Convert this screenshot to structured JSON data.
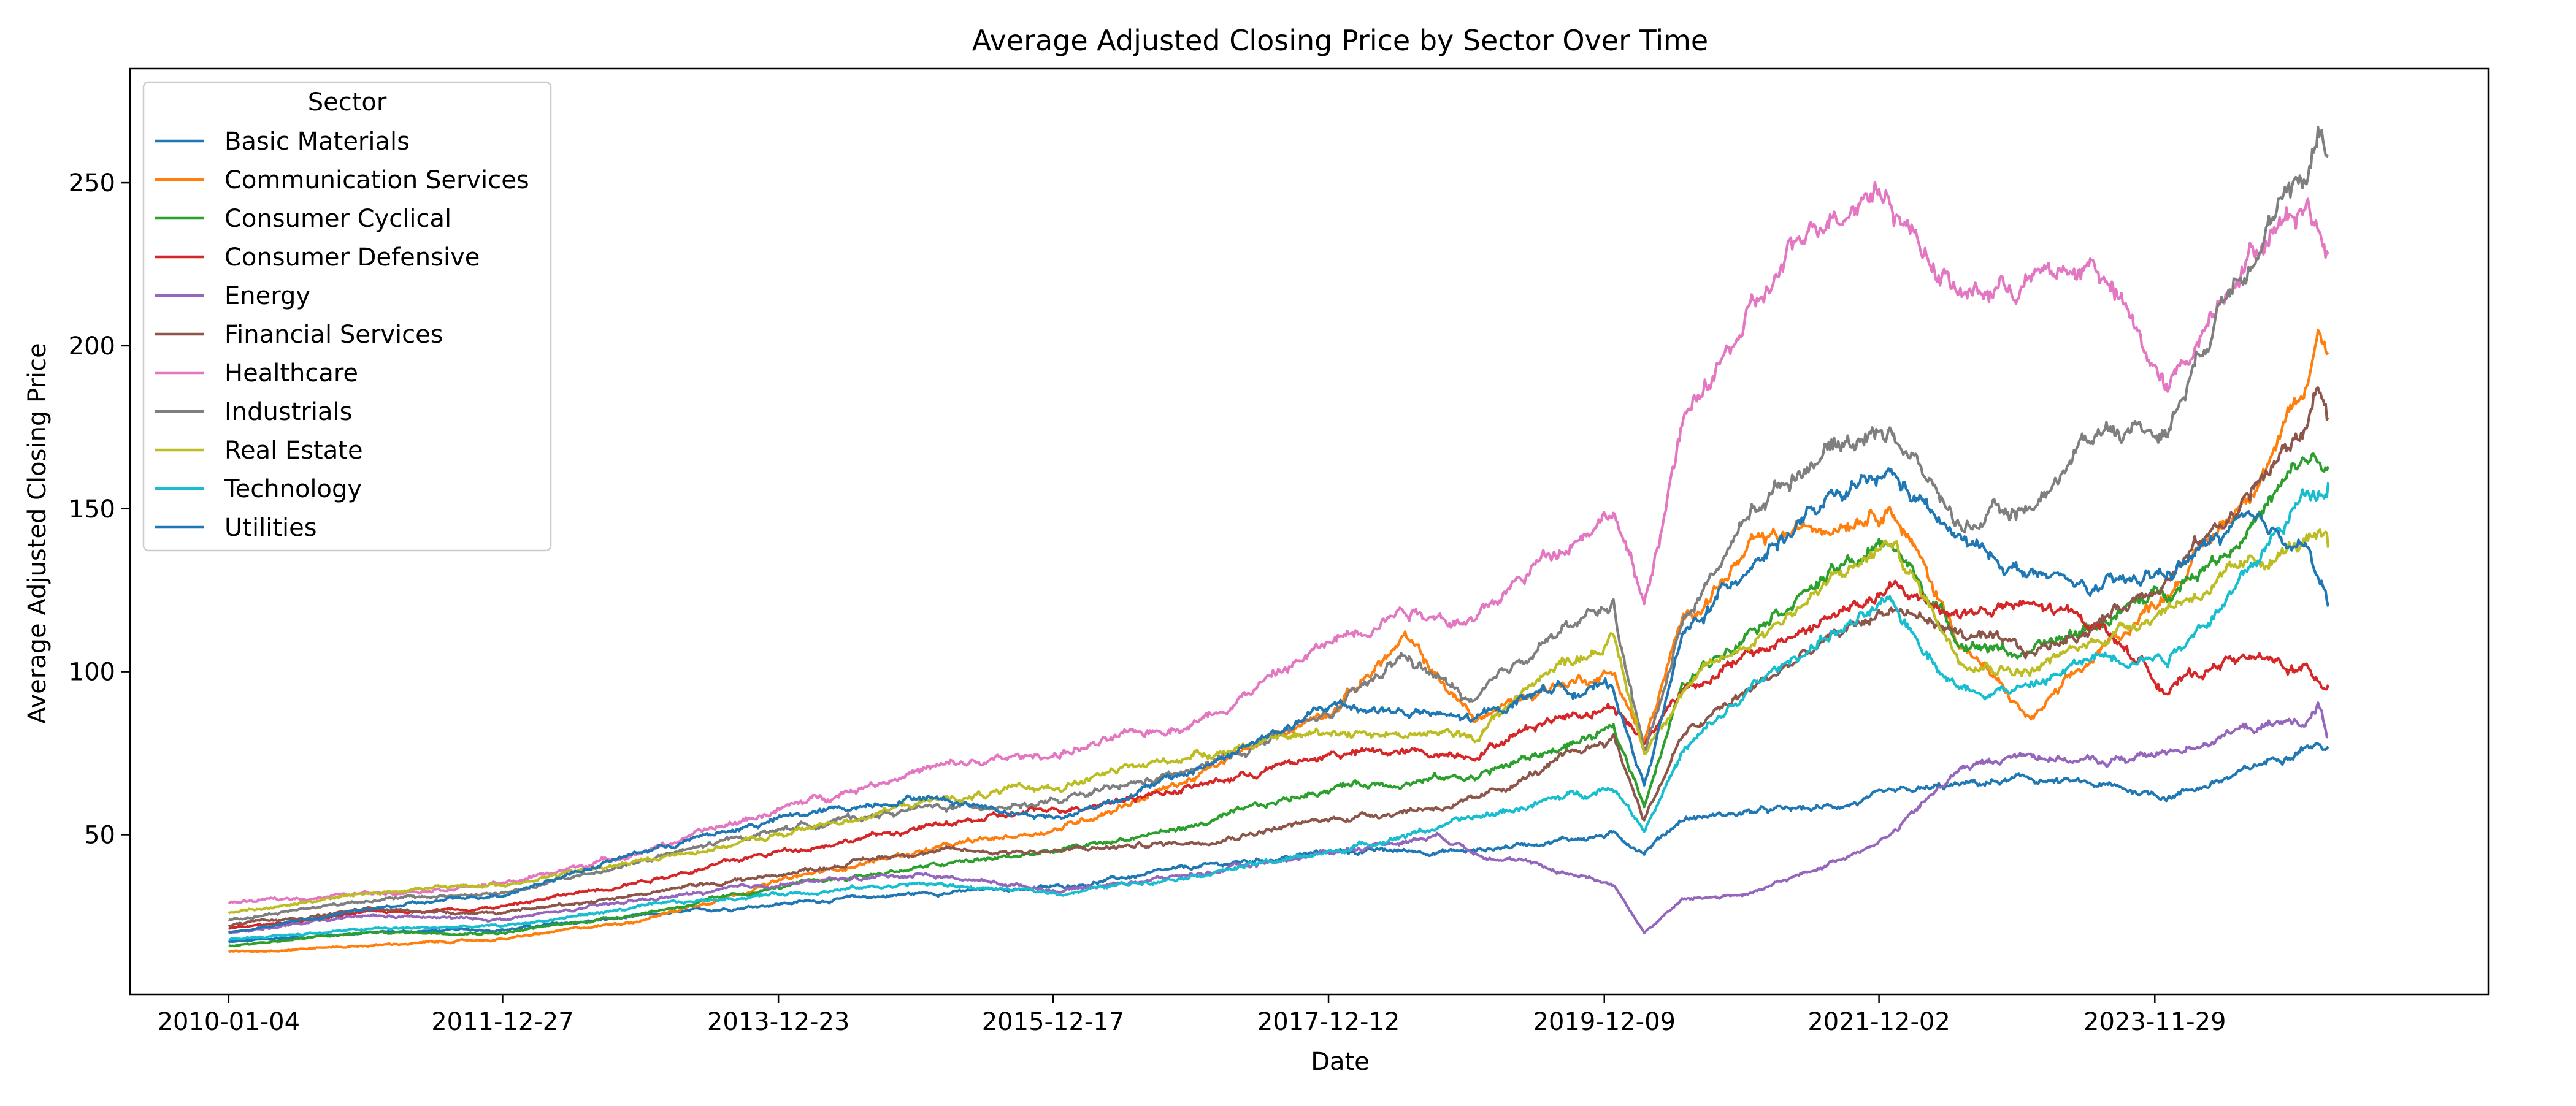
{
  "chart_data": {
    "type": "line",
    "title": "Average Adjusted Closing Price by Sector Over Time",
    "xlabel": "Date",
    "ylabel": "Average Adjusted Closing Price",
    "x_tick_labels": [
      "2010-01-04",
      "2011-12-27",
      "2013-12-23",
      "2015-12-17",
      "2017-12-12",
      "2019-12-09",
      "2021-12-02",
      "2023-11-29"
    ],
    "y_ticks": [
      50,
      100,
      150,
      200,
      250
    ],
    "xlim": [
      "2009-04-19",
      "2026-04-26"
    ],
    "ylim": [
      1,
      285
    ],
    "grid": false,
    "legend": {
      "title": "Sector",
      "placement": "top-left"
    },
    "series": [
      {
        "name": "Basic Materials",
        "color": "#1f77b4",
        "points": [
          [
            "2010-01-04",
            17
          ],
          [
            "2011-01-03",
            20
          ],
          [
            "2012-01-03",
            21
          ],
          [
            "2013-01-02",
            25
          ],
          [
            "2014-01-02",
            29
          ],
          [
            "2015-01-02",
            32
          ],
          [
            "2016-01-04",
            34
          ],
          [
            "2017-01-03",
            40
          ],
          [
            "2018-01-02",
            45
          ],
          [
            "2019-01-02",
            45
          ],
          [
            "2019-07-01",
            48
          ],
          [
            "2020-01-02",
            50
          ],
          [
            "2020-03-23",
            45
          ],
          [
            "2020-07-01",
            55
          ],
          [
            "2021-01-04",
            57
          ],
          [
            "2021-07-01",
            58
          ],
          [
            "2022-01-03",
            62
          ],
          [
            "2022-07-01",
            65
          ],
          [
            "2023-01-03",
            67
          ],
          [
            "2023-07-03",
            65
          ],
          [
            "2024-01-02",
            62
          ],
          [
            "2024-07-01",
            68
          ],
          [
            "2025-01-02",
            78
          ],
          [
            "2025-02-28",
            77
          ]
        ]
      },
      {
        "name": "Communication Services",
        "color": "#ff7f0e",
        "points": [
          [
            "2010-01-04",
            14
          ],
          [
            "2011-01-03",
            16
          ],
          [
            "2012-01-03",
            18
          ],
          [
            "2013-01-02",
            24
          ],
          [
            "2014-01-02",
            36
          ],
          [
            "2015-01-02",
            45
          ],
          [
            "2016-01-04",
            52
          ],
          [
            "2017-01-03",
            68
          ],
          [
            "2018-01-02",
            90
          ],
          [
            "2018-07-02",
            110
          ],
          [
            "2019-01-02",
            85
          ],
          [
            "2019-07-01",
            95
          ],
          [
            "2020-01-02",
            100
          ],
          [
            "2020-03-23",
            78
          ],
          [
            "2020-07-01",
            115
          ],
          [
            "2021-01-04",
            138
          ],
          [
            "2021-07-01",
            145
          ],
          [
            "2022-01-03",
            152
          ],
          [
            "2022-07-01",
            110
          ],
          [
            "2023-01-03",
            85
          ],
          [
            "2023-07-03",
            105
          ],
          [
            "2024-01-02",
            125
          ],
          [
            "2024-07-01",
            150
          ],
          [
            "2025-01-02",
            185
          ],
          [
            "2025-02-01",
            205
          ],
          [
            "2025-02-28",
            198
          ]
        ]
      },
      {
        "name": "Consumer Cyclical",
        "color": "#2ca02c",
        "points": [
          [
            "2010-01-04",
            16
          ],
          [
            "2011-01-03",
            20
          ],
          [
            "2012-01-03",
            20
          ],
          [
            "2013-01-02",
            26
          ],
          [
            "2014-01-02",
            34
          ],
          [
            "2015-01-02",
            40
          ],
          [
            "2016-01-04",
            45
          ],
          [
            "2017-01-03",
            53
          ],
          [
            "2018-01-02",
            65
          ],
          [
            "2019-01-02",
            68
          ],
          [
            "2019-07-01",
            75
          ],
          [
            "2020-01-02",
            82
          ],
          [
            "2020-03-23",
            60
          ],
          [
            "2020-07-01",
            95
          ],
          [
            "2021-01-04",
            115
          ],
          [
            "2021-07-01",
            128
          ],
          [
            "2022-01-03",
            140
          ],
          [
            "2022-07-01",
            110
          ],
          [
            "2023-01-03",
            105
          ],
          [
            "2023-07-03",
            115
          ],
          [
            "2024-01-02",
            125
          ],
          [
            "2024-07-01",
            140
          ],
          [
            "2025-01-02",
            165
          ],
          [
            "2025-02-28",
            163
          ]
        ]
      },
      {
        "name": "Consumer Defensive",
        "color": "#d62728",
        "points": [
          [
            "2010-01-04",
            21
          ],
          [
            "2011-01-03",
            26
          ],
          [
            "2012-01-03",
            28
          ],
          [
            "2013-01-02",
            36
          ],
          [
            "2014-01-02",
            45
          ],
          [
            "2015-01-02",
            52
          ],
          [
            "2016-01-04",
            58
          ],
          [
            "2017-01-03",
            65
          ],
          [
            "2018-01-02",
            75
          ],
          [
            "2019-01-02",
            75
          ],
          [
            "2019-07-01",
            85
          ],
          [
            "2020-01-02",
            90
          ],
          [
            "2020-03-23",
            78
          ],
          [
            "2020-07-01",
            95
          ],
          [
            "2021-01-04",
            105
          ],
          [
            "2021-07-01",
            115
          ],
          [
            "2022-01-03",
            125
          ],
          [
            "2022-07-01",
            118
          ],
          [
            "2023-01-03",
            120
          ],
          [
            "2023-07-03",
            115
          ],
          [
            "2024-01-02",
            95
          ],
          [
            "2024-07-01",
            105
          ],
          [
            "2025-01-02",
            100
          ],
          [
            "2025-02-28",
            96
          ]
        ]
      },
      {
        "name": "Energy",
        "color": "#9467bd",
        "points": [
          [
            "2010-01-04",
            20
          ],
          [
            "2011-01-03",
            25
          ],
          [
            "2012-01-03",
            24
          ],
          [
            "2013-01-02",
            30
          ],
          [
            "2014-01-02",
            35
          ],
          [
            "2015-01-02",
            38
          ],
          [
            "2016-01-04",
            33
          ],
          [
            "2017-01-03",
            38
          ],
          [
            "2018-01-02",
            45
          ],
          [
            "2018-10-01",
            50
          ],
          [
            "2019-01-02",
            45
          ],
          [
            "2019-07-01",
            40
          ],
          [
            "2020-01-02",
            35
          ],
          [
            "2020-03-23",
            20
          ],
          [
            "2020-07-01",
            30
          ],
          [
            "2021-01-04",
            32
          ],
          [
            "2021-07-01",
            40
          ],
          [
            "2022-01-03",
            50
          ],
          [
            "2022-07-01",
            70
          ],
          [
            "2023-01-03",
            75
          ],
          [
            "2023-07-03",
            72
          ],
          [
            "2024-01-02",
            75
          ],
          [
            "2024-07-01",
            82
          ],
          [
            "2025-01-02",
            85
          ],
          [
            "2025-02-01",
            90
          ],
          [
            "2025-02-28",
            80
          ]
        ]
      },
      {
        "name": "Financial Services",
        "color": "#8c564b",
        "points": [
          [
            "2010-01-04",
            22
          ],
          [
            "2011-01-03",
            27
          ],
          [
            "2012-01-03",
            26
          ],
          [
            "2013-01-02",
            32
          ],
          [
            "2014-01-02",
            38
          ],
          [
            "2015-01-02",
            45
          ],
          [
            "2016-01-04",
            45
          ],
          [
            "2017-01-03",
            48
          ],
          [
            "2018-01-02",
            55
          ],
          [
            "2019-01-02",
            60
          ],
          [
            "2019-07-01",
            70
          ],
          [
            "2020-01-02",
            80
          ],
          [
            "2020-03-23",
            55
          ],
          [
            "2020-07-01",
            80
          ],
          [
            "2021-01-04",
            95
          ],
          [
            "2021-07-01",
            108
          ],
          [
            "2022-01-03",
            120
          ],
          [
            "2022-07-01",
            112
          ],
          [
            "2023-01-03",
            105
          ],
          [
            "2023-07-03",
            115
          ],
          [
            "2024-01-02",
            130
          ],
          [
            "2024-07-01",
            150
          ],
          [
            "2025-01-02",
            175
          ],
          [
            "2025-02-01",
            190
          ],
          [
            "2025-02-28",
            178
          ]
        ]
      },
      {
        "name": "Healthcare",
        "color": "#e377c2",
        "points": [
          [
            "2010-01-04",
            29
          ],
          [
            "2011-01-03",
            32
          ],
          [
            "2012-01-03",
            35
          ],
          [
            "2013-01-02",
            45
          ],
          [
            "2014-01-02",
            58
          ],
          [
            "2015-01-02",
            70
          ],
          [
            "2016-01-04",
            75
          ],
          [
            "2017-01-03",
            85
          ],
          [
            "2018-01-02",
            110
          ],
          [
            "2018-07-02",
            120
          ],
          [
            "2019-01-02",
            115
          ],
          [
            "2019-07-01",
            135
          ],
          [
            "2020-01-02",
            150
          ],
          [
            "2020-03-23",
            120
          ],
          [
            "2020-07-01",
            175
          ],
          [
            "2021-01-04",
            210
          ],
          [
            "2021-07-01",
            240
          ],
          [
            "2021-12-02",
            250
          ],
          [
            "2022-07-01",
            215
          ],
          [
            "2023-01-03",
            220
          ],
          [
            "2023-07-03",
            225
          ],
          [
            "2024-01-02",
            185
          ],
          [
            "2024-07-01",
            225
          ],
          [
            "2025-01-02",
            245
          ],
          [
            "2025-02-28",
            228
          ]
        ]
      },
      {
        "name": "Industrials",
        "color": "#7f7f7f",
        "points": [
          [
            "2010-01-04",
            24
          ],
          [
            "2011-01-03",
            30
          ],
          [
            "2012-01-03",
            32
          ],
          [
            "2013-01-02",
            42
          ],
          [
            "2014-01-02",
            52
          ],
          [
            "2015-01-02",
            58
          ],
          [
            "2016-01-04",
            60
          ],
          [
            "2017-01-03",
            70
          ],
          [
            "2018-01-02",
            88
          ],
          [
            "2018-07-02",
            105
          ],
          [
            "2019-01-02",
            90
          ],
          [
            "2019-07-01",
            110
          ],
          [
            "2020-01-02",
            120
          ],
          [
            "2020-03-23",
            75
          ],
          [
            "2020-07-01",
            115
          ],
          [
            "2021-01-04",
            150
          ],
          [
            "2021-07-01",
            168
          ],
          [
            "2022-01-03",
            175
          ],
          [
            "2022-07-01",
            145
          ],
          [
            "2023-01-03",
            150
          ],
          [
            "2023-07-03",
            175
          ],
          [
            "2024-01-02",
            175
          ],
          [
            "2024-07-01",
            225
          ],
          [
            "2025-01-02",
            250
          ],
          [
            "2025-02-01",
            270
          ],
          [
            "2025-02-28",
            258
          ]
        ]
      },
      {
        "name": "Real Estate",
        "color": "#bcbd22",
        "points": [
          [
            "2010-01-04",
            26
          ],
          [
            "2011-01-03",
            32
          ],
          [
            "2012-01-03",
            35
          ],
          [
            "2013-01-02",
            42
          ],
          [
            "2014-01-02",
            50
          ],
          [
            "2015-01-02",
            60
          ],
          [
            "2016-01-04",
            65
          ],
          [
            "2017-01-03",
            75
          ],
          [
            "2018-01-02",
            82
          ],
          [
            "2019-01-02",
            80
          ],
          [
            "2019-07-01",
            100
          ],
          [
            "2020-01-02",
            110
          ],
          [
            "2020-03-23",
            75
          ],
          [
            "2020-07-01",
            95
          ],
          [
            "2021-01-04",
            110
          ],
          [
            "2021-07-01",
            125
          ],
          [
            "2022-01-03",
            140
          ],
          [
            "2022-07-01",
            105
          ],
          [
            "2023-01-03",
            100
          ],
          [
            "2023-07-03",
            110
          ],
          [
            "2024-01-02",
            120
          ],
          [
            "2024-07-01",
            130
          ],
          [
            "2025-01-02",
            140
          ],
          [
            "2025-02-28",
            138
          ]
        ]
      },
      {
        "name": "Technology",
        "color": "#17becf",
        "points": [
          [
            "2010-01-04",
            18
          ],
          [
            "2011-01-03",
            21
          ],
          [
            "2012-01-03",
            22
          ],
          [
            "2013-01-02",
            28
          ],
          [
            "2014-01-02",
            32
          ],
          [
            "2015-01-02",
            35
          ],
          [
            "2016-01-04",
            32
          ],
          [
            "2017-01-03",
            38
          ],
          [
            "2018-01-02",
            45
          ],
          [
            "2019-01-02",
            55
          ],
          [
            "2019-07-01",
            60
          ],
          [
            "2020-01-02",
            65
          ],
          [
            "2020-03-23",
            52
          ],
          [
            "2020-07-01",
            75
          ],
          [
            "2021-01-04",
            95
          ],
          [
            "2021-07-01",
            110
          ],
          [
            "2022-01-03",
            120
          ],
          [
            "2022-07-01",
            95
          ],
          [
            "2023-01-03",
            95
          ],
          [
            "2023-07-03",
            105
          ],
          [
            "2024-01-02",
            105
          ],
          [
            "2024-07-01",
            125
          ],
          [
            "2025-01-02",
            155
          ],
          [
            "2025-02-28",
            158
          ]
        ]
      },
      {
        "name": "Utilities",
        "color": "#1f77b4",
        "points": [
          [
            "2010-01-04",
            20
          ],
          [
            "2011-01-03",
            27
          ],
          [
            "2012-01-03",
            32
          ],
          [
            "2013-01-02",
            45
          ],
          [
            "2014-01-02",
            55
          ],
          [
            "2015-01-02",
            62
          ],
          [
            "2016-01-04",
            55
          ],
          [
            "2017-01-03",
            70
          ],
          [
            "2018-01-02",
            90
          ],
          [
            "2019-01-02",
            85
          ],
          [
            "2019-07-01",
            95
          ],
          [
            "2020-01-02",
            95
          ],
          [
            "2020-03-23",
            65
          ],
          [
            "2020-07-01",
            110
          ],
          [
            "2021-01-04",
            135
          ],
          [
            "2021-07-01",
            150
          ],
          [
            "2022-01-03",
            160
          ],
          [
            "2022-07-01",
            140
          ],
          [
            "2023-01-03",
            130
          ],
          [
            "2023-07-03",
            125
          ],
          [
            "2024-01-02",
            130
          ],
          [
            "2024-07-01",
            145
          ],
          [
            "2025-01-02",
            140
          ],
          [
            "2025-02-28",
            120
          ]
        ]
      }
    ]
  }
}
